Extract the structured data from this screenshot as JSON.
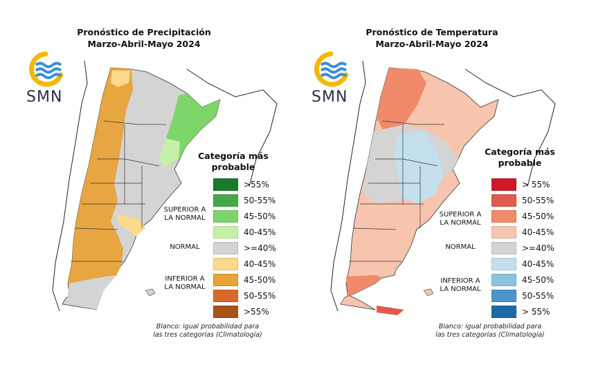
{
  "precip": {
    "title_line1": "Pronóstico de Precipitación",
    "title_line2": "Marzo-Abril-Mayo 2024",
    "logo_text": "SMN",
    "legend_title_line1": "Categoría más",
    "legend_title_line2": "probable",
    "legend": [
      {
        "label": ">55%",
        "color": "#1a7a2c"
      },
      {
        "label": "50-55%",
        "color": "#45a848"
      },
      {
        "label": "45-50%",
        "color": "#7ed56a"
      },
      {
        "label": "40-45%",
        "color": "#c6f0a8"
      },
      {
        "label": ">=40%",
        "color": "#d4d4d4"
      },
      {
        "label": "40-45%",
        "color": "#fdd98a"
      },
      {
        "label": "45-50%",
        "color": "#e8a33a"
      },
      {
        "label": "50-55%",
        "color": "#d9692a"
      },
      {
        "label": ">55%",
        "color": "#a8521c"
      }
    ],
    "cat_superior_line1": "SUPERIOR A",
    "cat_superior_line2": "LA NORMAL",
    "cat_normal": "NORMAL",
    "cat_inferior_line1": "INFERIOR A",
    "cat_inferior_line2": "LA NORMAL",
    "note_line1": "Blanco: igual probabilidad para",
    "note_line2": "las tres categorías (Climatología)"
  },
  "temp": {
    "title_line1": "Pronóstico de Temperatura",
    "title_line2": "Marzo-Abril-Mayo 2024",
    "logo_text": "SMN",
    "legend_title_line1": "Categoría más",
    "legend_title_line2": "probable",
    "legend": [
      {
        "label": "> 55%",
        "color": "#cc1a2a"
      },
      {
        "label": "50-55%",
        "color": "#e05a4e"
      },
      {
        "label": "45-50%",
        "color": "#f08a6a"
      },
      {
        "label": "40-45%",
        "color": "#f7c4ae"
      },
      {
        "label": ">=40%",
        "color": "#d4d4d4"
      },
      {
        "label": "40-45%",
        "color": "#c4e0ee"
      },
      {
        "label": "45-50%",
        "color": "#8cc2e0"
      },
      {
        "label": "50-55%",
        "color": "#4a96c8"
      },
      {
        "label": "> 55%",
        "color": "#1a6aa8"
      }
    ],
    "cat_superior_line1": "SUPERIOR A",
    "cat_superior_line2": "LA NORMAL",
    "cat_normal": "NORMAL",
    "cat_inferior_line1": "INFERIOR A",
    "cat_inferior_line2": "LA NORMAL",
    "note_line1": "Blanco: igual probabilidad para",
    "note_line2": "las tres categorías (Climatología)"
  },
  "colors": {
    "logo_yellow": "#f5b800",
    "logo_blue": "#3b8fd6",
    "neutral_gray": "#d4d4d4",
    "border": "#333333"
  }
}
